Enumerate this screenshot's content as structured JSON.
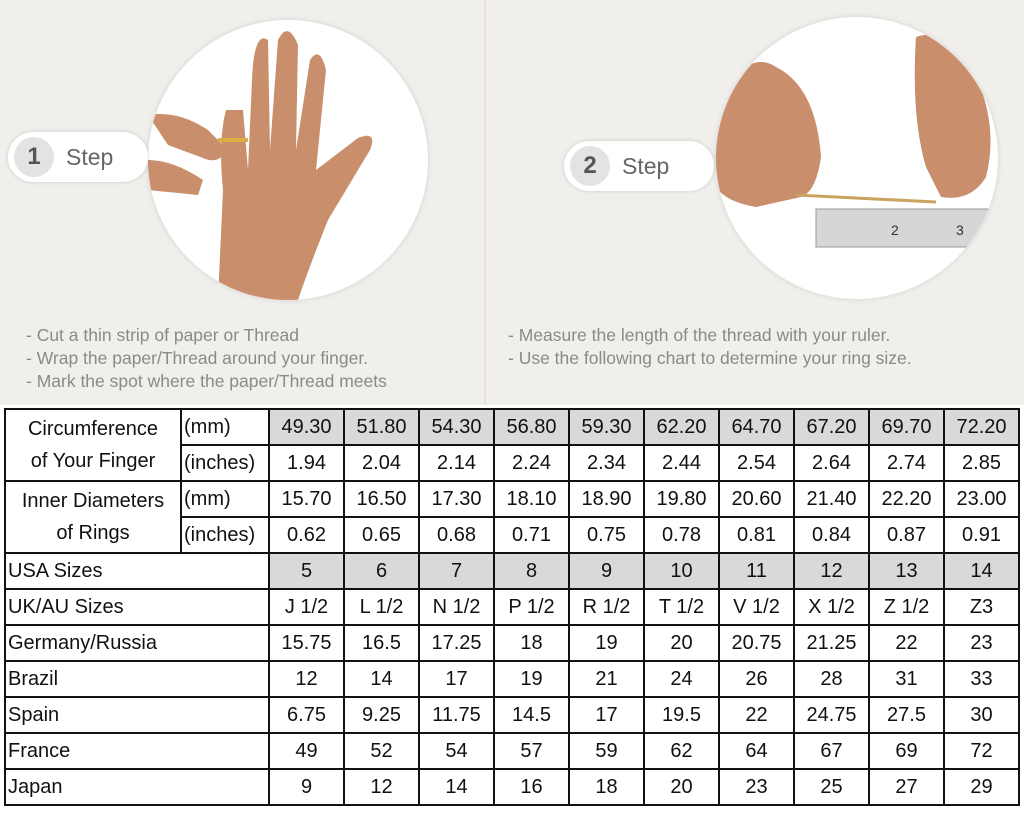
{
  "steps": [
    {
      "number": "1",
      "label": "Step",
      "instructions": [
        "- Cut a thin strip of paper or Thread",
        "- Wrap the paper/Thread around your finger.",
        "- Mark the spot where the paper/Thread meets"
      ]
    },
    {
      "number": "2",
      "label": "Step",
      "instructions": [
        "- Measure the length of the thread with your ruler.",
        "- Use the following chart to determine your ring size."
      ]
    }
  ],
  "table": {
    "circumference": {
      "label_line1": "Circumference",
      "label_line2": "of Your Finger",
      "mm_unit": "(mm)",
      "in_unit": "(inches)",
      "mm": [
        "49.30",
        "51.80",
        "54.30",
        "56.80",
        "59.30",
        "62.20",
        "64.70",
        "67.20",
        "69.70",
        "72.20"
      ],
      "inches": [
        "1.94",
        "2.04",
        "2.14",
        "2.24",
        "2.34",
        "2.44",
        "2.54",
        "2.64",
        "2.74",
        "2.85"
      ]
    },
    "diameter": {
      "label_line1": "Inner Diameters",
      "label_line2": "of Rings",
      "mm_unit": "(mm)",
      "in_unit": "(inches)",
      "mm": [
        "15.70",
        "16.50",
        "17.30",
        "18.10",
        "18.90",
        "19.80",
        "20.60",
        "21.40",
        "22.20",
        "23.00"
      ],
      "inches": [
        "0.62",
        "0.65",
        "0.68",
        "0.71",
        "0.75",
        "0.78",
        "0.81",
        "0.84",
        "0.87",
        "0.91"
      ]
    },
    "rows": [
      {
        "label": "USA Sizes",
        "values": [
          "5",
          "6",
          "7",
          "8",
          "9",
          "10",
          "11",
          "12",
          "13",
          "14"
        ],
        "gray": true
      },
      {
        "label": "UK/AU Sizes",
        "values": [
          "J 1/2",
          "L 1/2",
          "N 1/2",
          "P 1/2",
          "R 1/2",
          "T 1/2",
          "V 1/2",
          "X 1/2",
          "Z 1/2",
          "Z3"
        ]
      },
      {
        "label": "Germany/Russia",
        "values": [
          "15.75",
          "16.5",
          "17.25",
          "18",
          "19",
          "20",
          "20.75",
          "21.25",
          "22",
          "23"
        ]
      },
      {
        "label": "Brazil",
        "values": [
          "12",
          "14",
          "17",
          "19",
          "21",
          "24",
          "26",
          "28",
          "31",
          "33"
        ]
      },
      {
        "label": "Spain",
        "values": [
          "6.75",
          "9.25",
          "11.75",
          "14.5",
          "17",
          "19.5",
          "22",
          "24.75",
          "27.5",
          "30"
        ]
      },
      {
        "label": "France",
        "values": [
          "49",
          "52",
          "54",
          "57",
          "59",
          "62",
          "64",
          "67",
          "69",
          "72"
        ]
      },
      {
        "label": "Japan",
        "values": [
          "9",
          "12",
          "14",
          "16",
          "18",
          "20",
          "23",
          "25",
          "27",
          "29"
        ]
      }
    ]
  },
  "colors": {
    "header_gray": "#d9d9d9",
    "background": "#f1efeb",
    "skin": "#c98e6c"
  }
}
